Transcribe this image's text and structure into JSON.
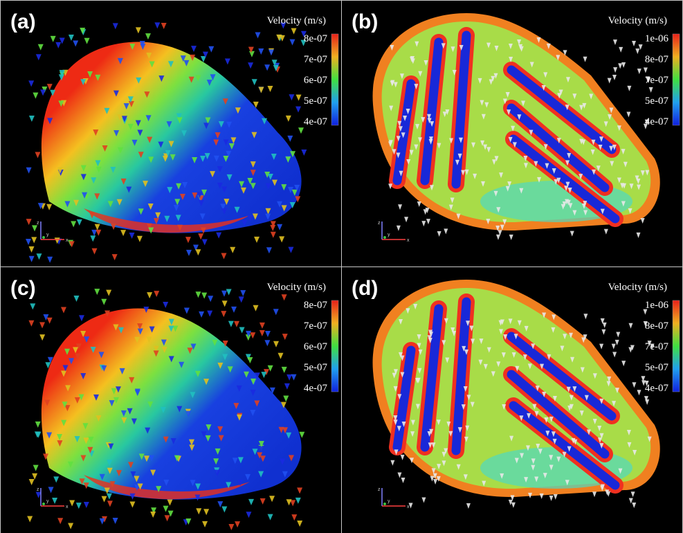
{
  "panels": [
    {
      "label": "(a)",
      "colorbar": {
        "title": "Velocity (m/s)",
        "ticks": [
          "8e-07",
          "7e-07",
          "6e-07",
          "5e-07",
          "4e-07"
        ]
      },
      "axes": {
        "z": "z",
        "y": "y",
        "x": "x"
      }
    },
    {
      "label": "(b)",
      "colorbar": {
        "title": "Velocity (m/s)",
        "ticks": [
          "1e-06",
          "8e-07",
          "7e-07",
          "5e-07",
          "4e-07"
        ]
      },
      "axes": {
        "z": "z",
        "y": "y",
        "x": "x"
      }
    },
    {
      "label": "(c)",
      "colorbar": {
        "title": "Velocity (m/s)",
        "ticks": [
          "8e-07",
          "7e-07",
          "6e-07",
          "5e-07",
          "4e-07"
        ]
      },
      "axes": {
        "z": "z",
        "y": "y",
        "x": "x"
      }
    },
    {
      "label": "(d)",
      "colorbar": {
        "title": "Velocity (m/s)",
        "ticks": [
          "1e-06",
          "8e-07",
          "7e-07",
          "5e-07",
          "4e-07"
        ]
      },
      "axes": {
        "z": "z",
        "y": "y",
        "x": "x"
      }
    }
  ]
}
